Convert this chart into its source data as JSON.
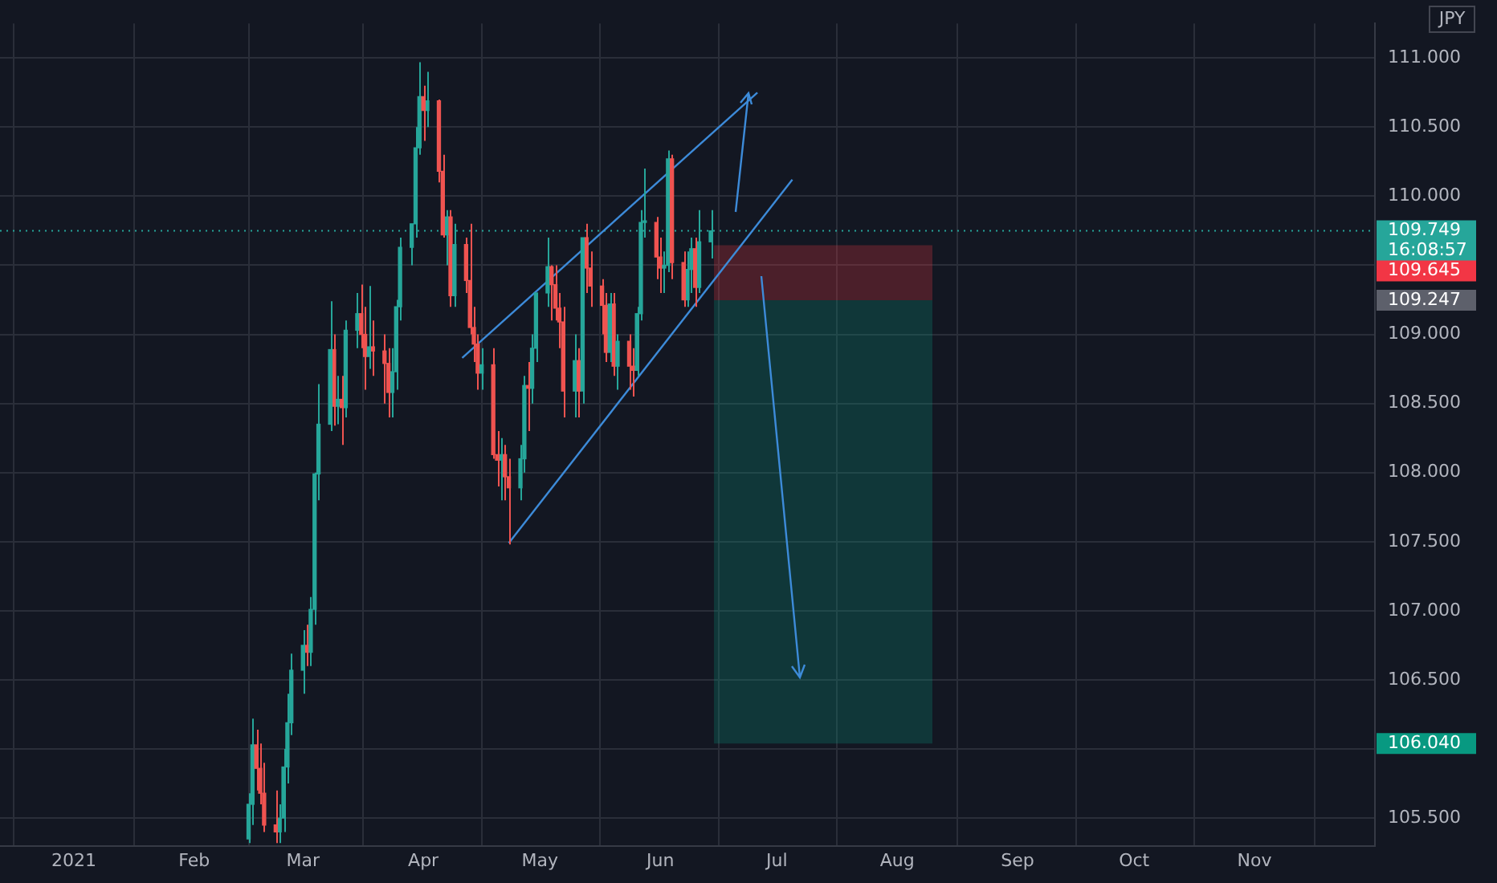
{
  "chart_data": {
    "type": "candlestick",
    "ylabel": "JPY",
    "x": [
      "2021-02-15",
      "2021-02-16",
      "2021-02-17",
      "2021-02-18",
      "2021-02-19",
      "2021-02-22",
      "2021-02-23",
      "2021-02-24",
      "2021-02-25",
      "2021-02-26",
      "2021-03-01",
      "2021-03-02",
      "2021-03-03",
      "2021-03-04",
      "2021-03-05",
      "2021-03-08",
      "2021-03-09",
      "2021-03-10",
      "2021-03-11",
      "2021-03-12",
      "2021-03-15",
      "2021-03-16",
      "2021-03-17",
      "2021-03-18",
      "2021-03-19",
      "2021-03-22",
      "2021-03-23",
      "2021-03-24",
      "2021-03-25",
      "2021-03-26",
      "2021-03-29",
      "2021-03-30",
      "2021-03-31",
      "2021-04-01",
      "2021-04-02",
      "2021-04-05",
      "2021-04-06",
      "2021-04-07",
      "2021-04-08",
      "2021-04-09",
      "2021-04-12",
      "2021-04-13",
      "2021-04-14",
      "2021-04-15",
      "2021-04-16",
      "2021-04-19",
      "2021-04-20",
      "2021-04-21",
      "2021-04-22",
      "2021-04-23",
      "2021-04-26",
      "2021-04-27",
      "2021-04-28",
      "2021-04-29",
      "2021-04-30",
      "2021-05-03",
      "2021-05-04",
      "2021-05-05",
      "2021-05-06",
      "2021-05-07",
      "2021-05-10",
      "2021-05-11",
      "2021-05-12",
      "2021-05-13",
      "2021-05-14",
      "2021-05-17",
      "2021-05-18",
      "2021-05-19",
      "2021-05-20",
      "2021-05-21",
      "2021-05-24",
      "2021-05-25",
      "2021-05-26",
      "2021-05-27",
      "2021-05-28",
      "2021-05-31",
      "2021-06-01",
      "2021-06-02",
      "2021-06-03",
      "2021-06-04",
      "2021-06-07",
      "2021-06-08",
      "2021-06-09",
      "2021-06-10",
      "2021-06-11",
      "2021-06-14"
    ],
    "ohlc": [
      [
        105.35,
        105.68,
        105.32,
        105.6
      ],
      [
        105.6,
        106.22,
        105.45,
        106.03
      ],
      [
        106.03,
        106.14,
        105.7,
        105.86
      ],
      [
        105.86,
        106.04,
        105.6,
        105.68
      ],
      [
        105.68,
        105.9,
        105.4,
        105.45
      ],
      [
        105.45,
        105.7,
        105.32,
        105.4
      ],
      [
        105.4,
        105.6,
        105.32,
        105.5
      ],
      [
        105.5,
        106.0,
        105.4,
        105.87
      ],
      [
        105.87,
        106.4,
        105.75,
        106.19
      ],
      [
        106.19,
        106.69,
        106.1,
        106.57
      ],
      [
        106.57,
        106.86,
        106.4,
        106.75
      ],
      [
        106.75,
        106.9,
        106.6,
        106.7
      ],
      [
        106.7,
        107.1,
        106.6,
        107.01
      ],
      [
        107.01,
        108.0,
        106.9,
        107.99
      ],
      [
        107.99,
        108.64,
        107.8,
        108.35
      ],
      [
        108.35,
        109.24,
        108.3,
        108.89
      ],
      [
        108.89,
        109.0,
        108.34,
        108.48
      ],
      [
        108.48,
        108.7,
        108.35,
        108.53
      ],
      [
        108.53,
        108.7,
        108.2,
        108.47
      ],
      [
        108.47,
        109.1,
        108.4,
        109.03
      ],
      [
        109.03,
        109.3,
        108.9,
        109.15
      ],
      [
        109.15,
        109.36,
        108.9,
        109.0
      ],
      [
        109.0,
        109.2,
        108.6,
        108.84
      ],
      [
        108.84,
        109.35,
        108.75,
        108.91
      ],
      [
        108.91,
        109.1,
        108.7,
        108.88
      ],
      [
        108.88,
        109.0,
        108.5,
        108.79
      ],
      [
        108.79,
        108.9,
        108.4,
        108.58
      ],
      [
        108.58,
        108.9,
        108.4,
        108.73
      ],
      [
        108.73,
        109.25,
        108.6,
        109.2
      ],
      [
        109.2,
        109.7,
        109.1,
        109.63
      ],
      [
        109.63,
        109.8,
        109.5,
        109.8
      ],
      [
        109.8,
        110.5,
        109.7,
        110.35
      ],
      [
        110.35,
        110.97,
        110.3,
        110.72
      ],
      [
        110.72,
        110.8,
        110.4,
        110.62
      ],
      [
        110.62,
        110.9,
        110.5,
        110.69
      ],
      [
        110.69,
        110.7,
        110.1,
        110.18
      ],
      [
        110.18,
        110.3,
        109.7,
        109.72
      ],
      [
        109.72,
        109.9,
        109.5,
        109.85
      ],
      [
        109.85,
        109.9,
        109.2,
        109.28
      ],
      [
        109.28,
        109.8,
        109.2,
        109.65
      ],
      [
        109.65,
        109.7,
        109.3,
        109.39
      ],
      [
        109.39,
        109.8,
        109.0,
        109.05
      ],
      [
        109.05,
        109.2,
        108.8,
        108.93
      ],
      [
        108.93,
        109.0,
        108.6,
        108.72
      ],
      [
        108.72,
        108.9,
        108.6,
        108.78
      ],
      [
        108.78,
        108.9,
        108.1,
        108.13
      ],
      [
        108.13,
        108.3,
        107.9,
        108.09
      ],
      [
        108.09,
        108.25,
        107.8,
        108.13
      ],
      [
        108.13,
        108.2,
        107.8,
        107.97
      ],
      [
        107.97,
        108.1,
        107.48,
        107.89
      ],
      [
        107.89,
        108.2,
        107.8,
        108.1
      ],
      [
        108.1,
        108.7,
        108.0,
        108.63
      ],
      [
        108.63,
        108.8,
        108.3,
        108.61
      ],
      [
        108.61,
        109.0,
        108.5,
        108.9
      ],
      [
        108.9,
        109.3,
        108.8,
        109.3
      ],
      [
        109.3,
        109.7,
        109.2,
        109.49
      ],
      [
        109.49,
        109.5,
        109.1,
        109.36
      ],
      [
        109.36,
        109.5,
        109.1,
        109.19
      ],
      [
        109.19,
        109.3,
        108.9,
        109.09
      ],
      [
        109.09,
        109.2,
        108.4,
        108.59
      ],
      [
        108.59,
        109.0,
        108.4,
        108.81
      ],
      [
        108.81,
        108.9,
        108.4,
        108.59
      ],
      [
        108.59,
        109.7,
        108.5,
        109.7
      ],
      [
        109.7,
        109.8,
        109.3,
        109.48
      ],
      [
        109.48,
        109.6,
        109.2,
        109.35
      ],
      [
        109.35,
        109.4,
        109.0,
        109.21
      ],
      [
        109.21,
        109.3,
        108.8,
        108.87
      ],
      [
        108.87,
        109.3,
        108.8,
        109.22
      ],
      [
        109.22,
        109.3,
        108.7,
        108.77
      ],
      [
        108.77,
        109.0,
        108.6,
        108.95
      ],
      [
        108.95,
        109.0,
        108.6,
        108.77
      ],
      [
        108.77,
        108.9,
        108.55,
        108.74
      ],
      [
        108.74,
        109.2,
        108.7,
        109.15
      ],
      [
        109.15,
        109.9,
        109.1,
        109.81
      ],
      [
        109.81,
        110.2,
        109.7,
        109.81
      ],
      [
        109.81,
        109.85,
        109.4,
        109.56
      ],
      [
        109.56,
        109.7,
        109.3,
        109.48
      ],
      [
        109.48,
        109.6,
        109.3,
        109.5
      ],
      [
        109.5,
        110.33,
        109.45,
        110.27
      ],
      [
        110.27,
        110.3,
        109.4,
        109.52
      ],
      [
        109.52,
        109.6,
        109.2,
        109.25
      ],
      [
        109.25,
        109.6,
        109.2,
        109.47
      ],
      [
        109.47,
        109.7,
        109.3,
        109.62
      ],
      [
        109.62,
        109.7,
        109.2,
        109.34
      ],
      [
        109.34,
        109.9,
        109.3,
        109.67
      ],
      [
        109.67,
        109.9,
        109.55,
        109.749
      ]
    ],
    "series": [
      {
        "type": "line",
        "color": "#3d8bd9",
        "x": [
          "2021-04-11",
          "2021-06-26"
        ],
        "values": [
          108.83,
          110.75
        ]
      },
      {
        "type": "line",
        "color": "#3d8bd9",
        "x": [
          "2021-04-23",
          "2021-07-05"
        ],
        "values": [
          107.49,
          110.12
        ]
      }
    ],
    "xlim": [
      "2020-12-13",
      "2021-12-02"
    ],
    "xticks": [
      {
        "value": "2021-01-01",
        "label": "2021"
      },
      {
        "value": "2021-02-01",
        "label": "Feb"
      },
      {
        "value": "2021-03-01",
        "label": "Mar"
      },
      {
        "value": "2021-04-01",
        "label": "Apr"
      },
      {
        "value": "2021-05-01",
        "label": "May"
      },
      {
        "value": "2021-06-01",
        "label": "Jun"
      },
      {
        "value": "2021-07-01",
        "label": "Jul"
      },
      {
        "value": "2021-08-01",
        "label": "Aug"
      },
      {
        "value": "2021-09-01",
        "label": "Sep"
      },
      {
        "value": "2021-10-01",
        "label": "Oct"
      },
      {
        "value": "2021-11-01",
        "label": "Nov"
      }
    ],
    "ylim": [
      105.3,
      111.25
    ],
    "yticks": [
      {
        "value": 105.5,
        "label": "105.500"
      },
      {
        "value": 106,
        "label": null
      },
      {
        "value": 106.5,
        "label": "106.500"
      },
      {
        "value": 107,
        "label": "107.000"
      },
      {
        "value": 107.5,
        "label": "107.500"
      },
      {
        "value": 108,
        "label": "108.000"
      },
      {
        "value": 108.5,
        "label": "108.500"
      },
      {
        "value": 109,
        "label": "109.000"
      },
      {
        "value": 109.5,
        "label": null
      },
      {
        "value": 110,
        "label": "110.000"
      },
      {
        "value": 110.5,
        "label": "110.500"
      },
      {
        "value": 111,
        "label": "111.000"
      }
    ],
    "grid": true,
    "legend": false,
    "ref_lines": [
      {
        "axis": "y",
        "value": 109.749,
        "label": "109.749",
        "color": "#26a69a",
        "line_style": "dotted"
      }
    ],
    "bands": [
      {
        "axis": "y",
        "from": 109.247,
        "to": 109.645,
        "color": "#f23645"
      },
      {
        "axis": "y",
        "from": 106.04,
        "to": 109.247,
        "color": "#089981"
      }
    ],
    "annotations": [
      "16:08:57",
      "109.247",
      "109.645",
      "106.040"
    ]
  }
}
